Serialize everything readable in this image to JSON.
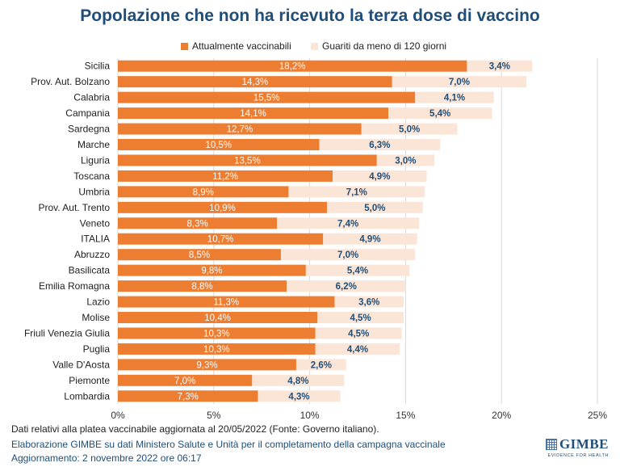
{
  "chart_data": {
    "type": "bar",
    "orientation": "horizontal",
    "stacked": true,
    "title": "Popolazione che non ha ricevuto la terza dose di vaccino",
    "categories": [
      "Sicilia",
      "Prov. Aut. Bolzano",
      "Calabria",
      "Campania",
      "Sardegna",
      "Marche",
      "Liguria",
      "Toscana",
      "Umbria",
      "Prov. Aut. Trento",
      "Veneto",
      "ITALIA",
      "Abruzzo",
      "Basilicata",
      "Emilia Romagna",
      "Lazio",
      "Molise",
      "Friuli Venezia Giulia",
      "Puglia",
      "Valle D'Aosta",
      "Piemonte",
      "Lombardia"
    ],
    "series": [
      {
        "name": "Attualmente vaccinabili",
        "color": "#ed7d31",
        "values": [
          18.2,
          14.3,
          15.5,
          14.1,
          12.7,
          10.5,
          13.5,
          11.2,
          8.9,
          10.9,
          8.3,
          10.7,
          8.5,
          9.8,
          8.8,
          11.3,
          10.4,
          10.3,
          10.3,
          9.3,
          7.0,
          7.3
        ],
        "labels": [
          "18,2%",
          "14,3%",
          "15,5%",
          "14,1%",
          "12,7%",
          "10,5%",
          "13,5%",
          "11,2%",
          "8,9%",
          "10,9%",
          "8,3%",
          "10,7%",
          "8,5%",
          "9,8%",
          "8,8%",
          "11,3%",
          "10,4%",
          "10,3%",
          "10,3%",
          "9,3%",
          "7,0%",
          "7,3%"
        ]
      },
      {
        "name": "Guariti da meno di 120 giorni",
        "color": "#fbe5d6",
        "values": [
          3.4,
          7.0,
          4.1,
          5.4,
          5.0,
          6.3,
          3.0,
          4.9,
          7.1,
          5.0,
          7.4,
          4.9,
          7.0,
          5.4,
          6.2,
          3.6,
          4.5,
          4.5,
          4.4,
          2.6,
          4.8,
          4.3
        ],
        "labels": [
          "3,4%",
          "7,0%",
          "4,1%",
          "5,4%",
          "5,0%",
          "6,3%",
          "3,0%",
          "4,9%",
          "7,1%",
          "5,0%",
          "7,4%",
          "4,9%",
          "7,0%",
          "5,4%",
          "6,2%",
          "3,6%",
          "4,5%",
          "4,5%",
          "4,4%",
          "2,6%",
          "4,8%",
          "4,3%"
        ]
      }
    ],
    "xlim": [
      0,
      25
    ],
    "xticks": [
      0,
      5,
      10,
      15,
      20,
      25
    ],
    "xtick_labels": [
      "0%",
      "5%",
      "10%",
      "15%",
      "20%",
      "25%"
    ],
    "grid": "vertical",
    "legend": "top"
  },
  "footer": {
    "note": "Dati relativi alla platea vaccinabile aggiornata al 20/05/2022 (Fonte: Governo italiano).",
    "source": "Elaborazione GIMBE su dati Ministero Salute e Unità per il completamento della campagna vaccinale",
    "updated": "Aggiornamento: 2 novembre 2022 ore 06:17"
  },
  "logo": {
    "name": "GIMBE",
    "tagline": "EVIDENCE FOR HEALTH"
  }
}
